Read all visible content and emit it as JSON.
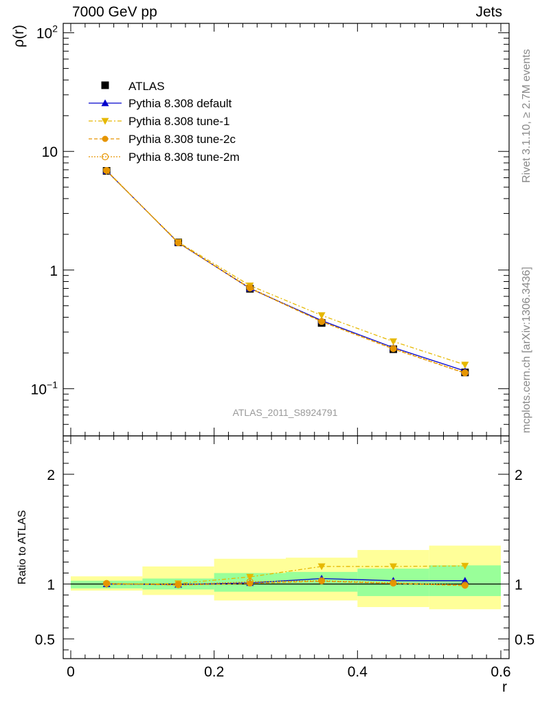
{
  "header": {
    "left_label": "7000 GeV pp",
    "right_label": "Jets",
    "side_top": "Rivet 3.1.10, ≥ 2.7M events",
    "side_bottom": "mcplots.cern.ch [arXiv:1306.3436]",
    "analysis_id": "ATLAS_2011_S8924791"
  },
  "chart_data": [
    {
      "type": "line",
      "panel": "main",
      "ylabel": "ρ(r)",
      "yscale": "log",
      "xlim": [
        0,
        0.6
      ],
      "ylim": [
        0.04,
        120
      ],
      "yticks": [
        {
          "value": 100,
          "base": "10",
          "exp": "2"
        },
        {
          "value": 10,
          "label": "10"
        },
        {
          "value": 1,
          "label": "1"
        },
        {
          "value": 0.1,
          "base": "10",
          "exp": "−1"
        }
      ],
      "x": [
        0.05,
        0.15,
        0.25,
        0.35,
        0.45,
        0.55
      ],
      "reference": {
        "name": "ATLAS",
        "values": [
          6.85,
          1.71,
          0.695,
          0.358,
          0.215,
          0.137
        ],
        "color": "#000000"
      },
      "series": [
        {
          "name": "Pythia 8.308 default",
          "values": [
            6.85,
            1.7,
            0.7,
            0.375,
            0.222,
            0.141
          ],
          "color": "#0000cc",
          "dash": "",
          "marker": "triangle-up"
        },
        {
          "name": "Pythia 8.308 tune-1",
          "values": [
            6.8,
            1.72,
            0.74,
            0.415,
            0.25,
            0.159
          ],
          "color": "#e6b800",
          "dash": "6,3,2,3",
          "marker": "triangle-down"
        },
        {
          "name": "Pythia 8.308 tune-2c",
          "values": [
            6.9,
            1.69,
            0.7,
            0.367,
            0.216,
            0.135
          ],
          "color": "#e69500",
          "dash": "5,3",
          "marker": "circle"
        },
        {
          "name": "Pythia 8.308 tune-2m",
          "values": [
            6.9,
            1.7,
            0.71,
            0.368,
            0.218,
            0.136
          ],
          "color": "#e69500",
          "dash": "2,2",
          "marker": "circle-open"
        }
      ],
      "legend_position": "top-left"
    },
    {
      "type": "line",
      "panel": "ratio",
      "xlabel": "r",
      "ylabel": "Ratio to ATLAS",
      "xlim": [
        0,
        0.6
      ],
      "ylim": [
        0.32,
        2.35
      ],
      "xticks": [
        "0",
        "0.2",
        "0.4",
        "0.6"
      ],
      "yticks": [
        "0.5",
        "1",
        "2"
      ],
      "x": [
        0.05,
        0.15,
        0.25,
        0.35,
        0.45,
        0.55
      ],
      "bin_edges": [
        0.0,
        0.1,
        0.2,
        0.3,
        0.4,
        0.5,
        0.6
      ],
      "band_stat": [
        [
          0.96,
          1.03
        ],
        [
          0.95,
          1.05
        ],
        [
          0.93,
          1.1
        ],
        [
          0.93,
          1.11
        ],
        [
          0.89,
          1.14
        ],
        [
          0.89,
          1.17
        ]
      ],
      "band_total": [
        [
          0.94,
          1.07
        ],
        [
          0.9,
          1.16
        ],
        [
          0.85,
          1.23
        ],
        [
          0.85,
          1.24
        ],
        [
          0.79,
          1.31
        ],
        [
          0.77,
          1.35
        ]
      ],
      "band_colors": {
        "stat": "#99ff99",
        "total": "#ffff99"
      },
      "series": [
        {
          "name": "Pythia 8.308 default",
          "values": [
            1.0,
            0.995,
            1.01,
            1.05,
            1.03,
            1.03
          ]
        },
        {
          "name": "Pythia 8.308 tune-1",
          "values": [
            0.995,
            1.005,
            1.065,
            1.16,
            1.16,
            1.165
          ]
        },
        {
          "name": "Pythia 8.308 tune-2c",
          "values": [
            1.005,
            0.99,
            1.005,
            1.025,
            1.005,
            0.985
          ]
        },
        {
          "name": "Pythia 8.308 tune-2m",
          "values": [
            1.005,
            0.995,
            1.02,
            1.03,
            1.01,
            0.99
          ]
        }
      ]
    }
  ]
}
